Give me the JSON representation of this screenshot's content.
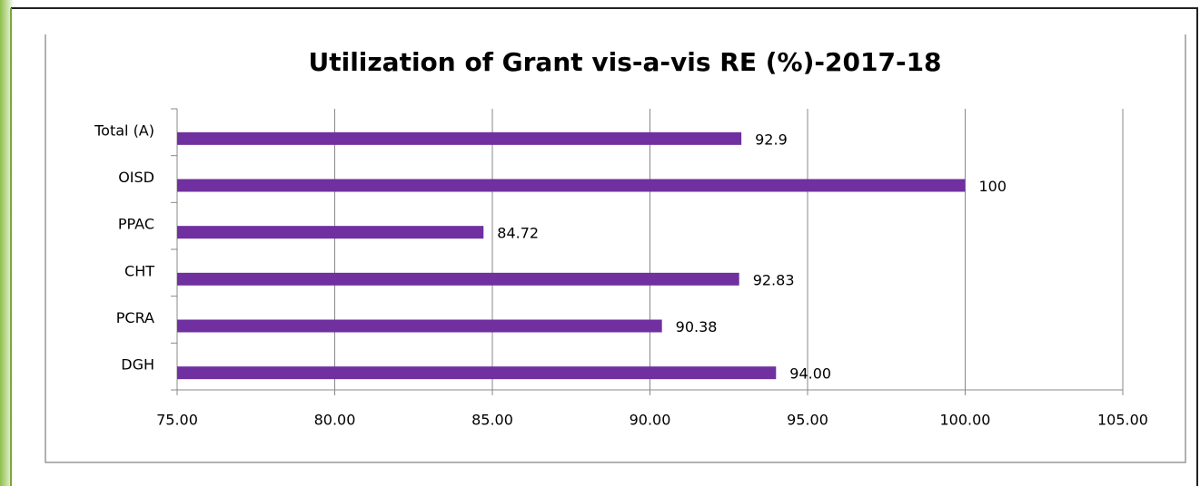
{
  "chart_data": {
    "type": "bar",
    "orientation": "horizontal",
    "title": "Utilization of Grant vis-a-vis RE (%)-2017-18",
    "categories": [
      "Total (A)",
      "OISD",
      "PPAC",
      "CHT",
      "PCRA",
      "DGH"
    ],
    "values": [
      92.9,
      100,
      84.72,
      92.83,
      90.38,
      94.0
    ],
    "value_labels": [
      "92.9",
      "100",
      "84.72",
      "92.83",
      "90.38",
      "94.00"
    ],
    "color": "#7030a0",
    "xlim": [
      75,
      105
    ],
    "xticks": [
      {
        "value": 75,
        "label": "75.00"
      },
      {
        "value": 80,
        "label": "80.00"
      },
      {
        "value": 85,
        "label": "85.00"
      },
      {
        "value": 90,
        "label": "90.00"
      },
      {
        "value": 95,
        "label": "95.00"
      },
      {
        "value": 100,
        "label": "100.00"
      },
      {
        "value": 105,
        "label": "105.00"
      }
    ],
    "grid": true
  }
}
